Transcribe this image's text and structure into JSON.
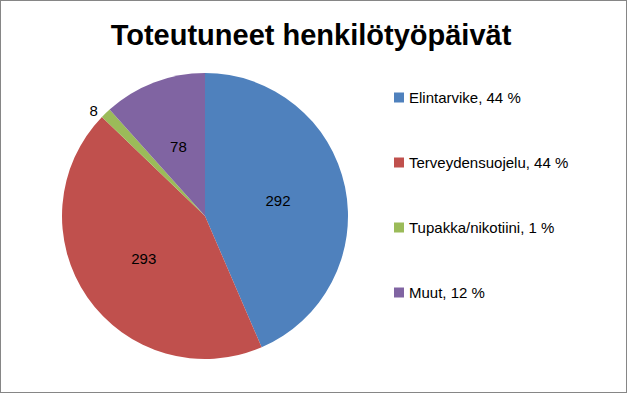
{
  "chart_data": {
    "type": "pie",
    "title": "Toteutuneet henkilötyöpäivät",
    "categories": [
      "Elintarvike, 44 %",
      "Terveydensuojelu, 44 %",
      "Tupakka/nikotiini, 1 %",
      "Muut, 12 %"
    ],
    "values": [
      292,
      293,
      8,
      78
    ],
    "colors": [
      "#4f81bd",
      "#c0504d",
      "#9bbb59",
      "#8064a2"
    ],
    "data_labels": true,
    "legend": "right"
  }
}
